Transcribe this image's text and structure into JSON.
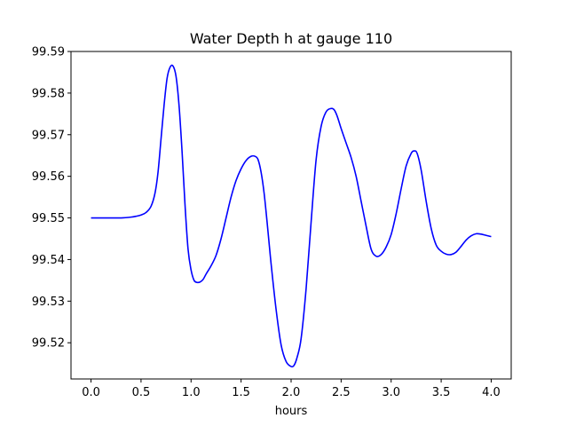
{
  "chart_data": {
    "type": "line",
    "title": "Water Depth h at gauge 110",
    "xlabel": "hours",
    "ylabel": "",
    "xlim": [
      -0.2,
      4.2
    ],
    "ylim": [
      99.5113,
      99.59
    ],
    "x_ticks": [
      0.0,
      0.5,
      1.0,
      1.5,
      2.0,
      2.5,
      3.0,
      3.5,
      4.0
    ],
    "x_tick_labels": [
      "0.0",
      "0.5",
      "1.0",
      "1.5",
      "2.0",
      "2.5",
      "3.0",
      "3.5",
      "4.0"
    ],
    "y_ticks": [
      99.52,
      99.53,
      99.54,
      99.55,
      99.56,
      99.57,
      99.58,
      99.59
    ],
    "y_tick_labels": [
      "99.52",
      "99.53",
      "99.54",
      "99.55",
      "99.56",
      "99.57",
      "99.58",
      "99.59"
    ],
    "grid": false,
    "colors": {
      "series": "#0000ff",
      "axes": "#000000",
      "background": "#ffffff"
    },
    "series": [
      {
        "name": "",
        "x": [
          0.0,
          0.1,
          0.2,
          0.3,
          0.4,
          0.45,
          0.5,
          0.55,
          0.6,
          0.64,
          0.67,
          0.7,
          0.73,
          0.76,
          0.79,
          0.82,
          0.85,
          0.88,
          0.91,
          0.94,
          0.97,
          1.0,
          1.03,
          1.06,
          1.09,
          1.12,
          1.15,
          1.2,
          1.25,
          1.3,
          1.35,
          1.4,
          1.45,
          1.5,
          1.55,
          1.6,
          1.64,
          1.67,
          1.7,
          1.73,
          1.76,
          1.8,
          1.85,
          1.9,
          1.95,
          2.0,
          2.03,
          2.06,
          2.1,
          2.15,
          2.2,
          2.25,
          2.3,
          2.35,
          2.4,
          2.43,
          2.46,
          2.5,
          2.55,
          2.6,
          2.65,
          2.7,
          2.75,
          2.8,
          2.85,
          2.9,
          2.95,
          3.0,
          3.05,
          3.1,
          3.15,
          3.2,
          3.23,
          3.26,
          3.3,
          3.35,
          3.4,
          3.45,
          3.5,
          3.55,
          3.6,
          3.65,
          3.7,
          3.75,
          3.8,
          3.85,
          3.9,
          3.95,
          4.0
        ],
        "y": [
          99.55,
          99.55,
          99.55,
          99.55,
          99.5502,
          99.5504,
          99.5507,
          99.5513,
          99.5528,
          99.556,
          99.561,
          99.569,
          99.577,
          99.5835,
          99.5862,
          99.5865,
          99.584,
          99.577,
          99.566,
          99.553,
          99.5425,
          99.5375,
          99.535,
          99.5345,
          99.5346,
          99.5352,
          99.5365,
          99.5385,
          99.541,
          99.545,
          99.55,
          99.555,
          99.559,
          99.5618,
          99.5638,
          99.5648,
          99.5648,
          99.564,
          99.561,
          99.556,
          99.549,
          99.539,
          99.528,
          99.5195,
          99.5155,
          99.5143,
          99.5146,
          99.5165,
          99.521,
          99.533,
          99.549,
          99.564,
          99.572,
          99.5755,
          99.5763,
          99.576,
          99.5745,
          99.5715,
          99.568,
          99.5645,
          99.56,
          99.554,
          99.548,
          99.5425,
          99.5408,
          99.5412,
          99.543,
          99.546,
          99.551,
          99.557,
          99.5625,
          99.5655,
          99.5661,
          99.5655,
          99.5615,
          99.554,
          99.5475,
          99.5435,
          99.542,
          99.5413,
          99.5412,
          99.5418,
          99.5432,
          99.5447,
          99.5457,
          99.5462,
          99.5461,
          99.5458,
          99.5455
        ]
      }
    ]
  }
}
